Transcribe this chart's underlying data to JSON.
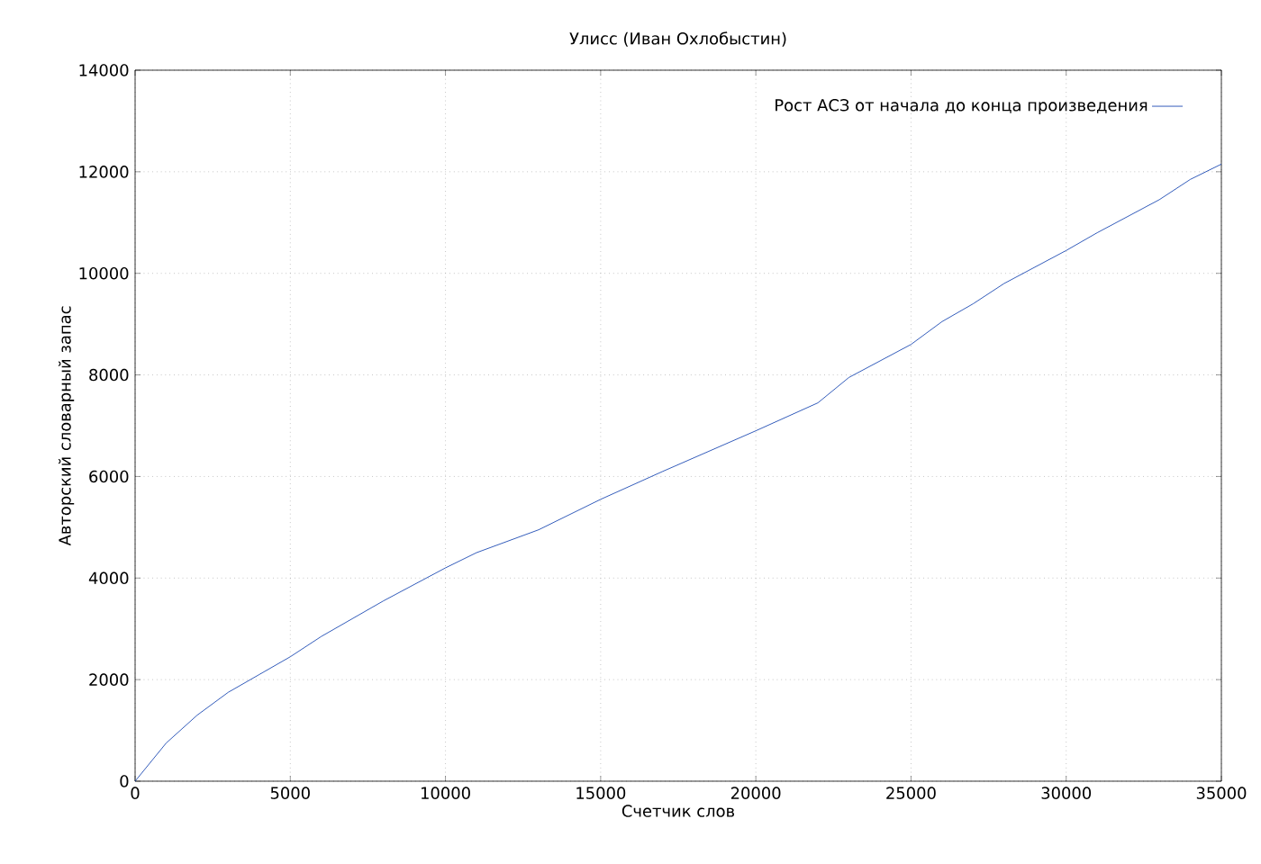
{
  "chart_data": {
    "type": "line",
    "title": "Улисс (Иван Охлобыстин)",
    "xlabel": "Счетчик слов",
    "ylabel": "Авторский словарный запас",
    "x": [
      0,
      1000,
      2000,
      3000,
      4000,
      5000,
      6000,
      8000,
      10000,
      11000,
      13000,
      15000,
      17000,
      20000,
      22000,
      23000,
      25000,
      26000,
      27000,
      28000,
      30000,
      31000,
      33000,
      34000,
      35000
    ],
    "series": [
      {
        "name": "Рост АСЗ от начала до конца произведения",
        "color": "#0033aa",
        "values": [
          0,
          750,
          1300,
          1750,
          2100,
          2450,
          2850,
          3550,
          4200,
          4500,
          4950,
          5550,
          6100,
          6900,
          7450,
          7950,
          8600,
          9050,
          9400,
          9800,
          10450,
          10800,
          11450,
          11850,
          12150
        ]
      }
    ],
    "xlim": [
      0,
      35000
    ],
    "ylim": [
      0,
      14000
    ],
    "xticks": [
      0,
      5000,
      10000,
      15000,
      20000,
      25000,
      30000,
      35000
    ],
    "yticks": [
      0,
      2000,
      4000,
      6000,
      8000,
      10000,
      12000,
      14000
    ],
    "grid": true,
    "legend": "top right"
  }
}
